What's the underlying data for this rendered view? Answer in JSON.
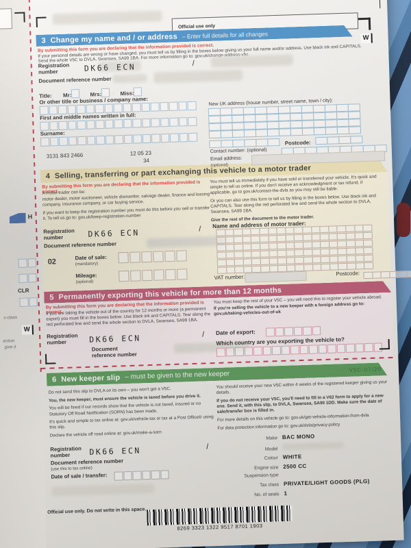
{
  "colors": {
    "s3": "#4a90c8",
    "s4band": "#f1e5b9",
    "s4body": "#faf4de",
    "s5": "#c05d77",
    "s5body": "#f8edf0",
    "s6": "#5f9d5e",
    "red": "#d8453e",
    "perf": "#c43a52"
  },
  "official_use_top": "Official use only",
  "declaration": "By submitting this form you are declaring that the information provided is correct.",
  "margin": {
    "h": "H",
    "clr": "CLR",
    "xclass": "x-class",
    "w": "W",
    "frag1": "ection",
    "frag2": "give it"
  },
  "s3": {
    "num": "3",
    "title": "Change my name and / or address",
    "subtitle": "– Enter full details for all changes",
    "wtab": "W",
    "body1": "If your personal details are wrong or have changed, you must tell us by filling in the boxes below giving us your full name and/or address. Use black ink and CAPITALS.",
    "body2": "Send the whole V5C to DVLA, Swansea, SA99 1BA. For more information go to: gov.uk/change-address-v5c",
    "reg_label1": "Registration",
    "reg_label2": "number",
    "reg_value": "DK66 ECN",
    "slash": "/",
    "doc_ref": "Document reference number",
    "title_label": "Title:",
    "mr": "Mr:",
    "mrs": "Mrs:",
    "miss": "Miss:",
    "other_label": "Or other title or business / company name:",
    "first_label": "First and middle names written in full:",
    "surname_label": "Surname:",
    "code1": "3131 843 2466",
    "code2": "12 05 23",
    "code3": "34",
    "addr_label": "New UK address (house number, street name, town / city):",
    "postcode": "Postcode:",
    "contact": "Contact number: (optional)",
    "email1": "Email address:",
    "email2": "(optional)"
  },
  "s4": {
    "num": "4",
    "title": "Selling, transferring or part exchanging this vehicle to a motor trader",
    "left1": "A motor trader can be:",
    "left2": "motor dealer, motor auctioneer, vehicle dismantler, salvage dealer, finance and leasing company, insurance company, or car buying service.",
    "left3": "If you want to keep the registration number you must do this before you sell or transfer it. To tell us go to: gov.uk/keep-registration-number",
    "right1": "You must tell us immediately if you have sold or transferred your vehicle. It's quick and simple to tell us online. If you don't receive an acknowledgment or tax refund, if applicable, go to gov.uk/contact-the-dvla as you may still be liable.",
    "right2": "Or you can also use this form to tell us by filling in the boxes below. Use black ink and CAPITALS. Tear along the red perforated line and send the whole section to DVLA, Swansea, SA99 1BA.",
    "right3": "Give the rest of the document to the motor trader.",
    "trader_label": "Name and address of motor trader:",
    "reg_label1": "Registration",
    "reg_label2": "number",
    "reg_value": "DK66 ECN",
    "slash": "/",
    "doc_ref": "Document reference number",
    "step": "02",
    "date_label": "Date of sale:",
    "date_note": "(mandatory)",
    "mileage_label": "Mileage:",
    "mileage_note": "(optional)",
    "vat": "VAT number:",
    "postcode": "Postcode:"
  },
  "s5": {
    "num": "5",
    "title": "Permanently exporting this vehicle for more than 12 months",
    "left1": "If you are taking the vehicle out of the country for 12 months or more (a permanent export) you must fill in the boxes below. Use black ink and CAPITALS. Tear along the red perforated line and send the whole section to DVLA, Swansea, SA99 1BA.",
    "right1": "You must keep the rest of your V5C – you will need this to register your vehicle abroad.",
    "right2": "If you're selling the vehicle to a new keeper with a foreign address go to: gov.uk/taking-vehicles-out-of-uk",
    "reg_label1": "Registration",
    "reg_label2": "number",
    "reg_value": "DK66 ECN",
    "slash": "/",
    "doc1": "Document",
    "doc2": "reference number",
    "export_label": "Date of export:",
    "country_label": "Which country are you exporting the vehicle to?"
  },
  "s6": {
    "num": "6",
    "title_bold": "New keeper slip",
    "title_rest": "– must be given to the new keeper",
    "code": "V5C-07/20",
    "left1": "Do not send this slip to DVLA on its own – you won't get a V5C.",
    "left2": "You, the new keeper, must ensure the vehicle is taxed before you drive it.",
    "left3": "You will be fined if our records show that the vehicle is not taxed, insured or no Statutory Off Road Notification (SORN) has been made.",
    "left4": "It's quick and simple to tax online at: gov.uk/vehicle-tax or tax at a Post Office® using this slip.",
    "left5": "Declare the vehicle off road online at: gov.uk/make-a-sorn",
    "right1": "You should receive your new V5C within 4 weeks of the registered keeper giving us your details.",
    "right2": "If you do not receive your V5C, you'll need to fill in a V62 form to apply for a new one. Send it, with this slip, to DVLA, Swansea, SA99 1DD. Make sure the date of sale/transfer box is filled in.",
    "right3": "For more details on this vehicle go to: gov.uk/get-vehicle-information-from-dvla",
    "right4": "For data protection information go to: gov.uk/dvla/privacy-policy",
    "reg_label1": "Registration",
    "reg_label2": "number",
    "reg_value": "DK66 ECN",
    "slash": "/",
    "doc_ref": "Document reference number",
    "doc_note": "(use this to tax online)",
    "date_label": "Date of sale / transfer:",
    "vehicle": {
      "make_label": "Make",
      "make": "BAC MONO",
      "model_label": "Model",
      "model": "",
      "colour_label": "Colour",
      "colour": "WHITE",
      "engine_label": "Engine size",
      "engine": "2500 CC",
      "susp_label": "Suspension type",
      "susp": "",
      "tax_label": "Tax class",
      "tax": "PRIVATE/LIGHT GOODS (PLG)",
      "seats_label": "No. of seats",
      "seats": "1"
    },
    "official_note": "Official use only. Do not write in this space.",
    "barcode_number": "8269 3323 1322 9517 8701 1903"
  }
}
